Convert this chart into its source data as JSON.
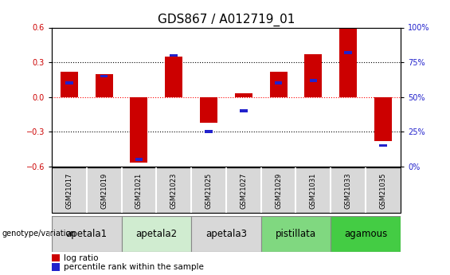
{
  "title": "GDS867 / A012719_01",
  "samples": [
    "GSM21017",
    "GSM21019",
    "GSM21021",
    "GSM21023",
    "GSM21025",
    "GSM21027",
    "GSM21029",
    "GSM21031",
    "GSM21033",
    "GSM21035"
  ],
  "log_ratio": [
    0.22,
    0.2,
    -0.57,
    0.35,
    -0.22,
    0.03,
    0.22,
    0.37,
    0.6,
    -0.38
  ],
  "percentile": [
    60,
    65,
    5,
    80,
    25,
    40,
    60,
    62,
    82,
    15
  ],
  "ylim": [
    -0.6,
    0.6
  ],
  "right_ylim": [
    0,
    100
  ],
  "right_yticks": [
    0,
    25,
    50,
    75,
    100
  ],
  "right_yticklabels": [
    "0%",
    "25%",
    "50%",
    "75%",
    "100%"
  ],
  "left_yticks": [
    -0.6,
    -0.3,
    0.0,
    0.3,
    0.6
  ],
  "bar_color": "#cc0000",
  "percentile_color": "#2222cc",
  "bar_width": 0.5,
  "groups": [
    {
      "label": "apetala1",
      "start": 0,
      "end": 2,
      "color": "#d8d8d8"
    },
    {
      "label": "apetala2",
      "start": 2,
      "end": 4,
      "color": "#d0ecd0"
    },
    {
      "label": "apetala3",
      "start": 4,
      "end": 6,
      "color": "#d8d8d8"
    },
    {
      "label": "pistillata",
      "start": 6,
      "end": 8,
      "color": "#80d880"
    },
    {
      "label": "agamous",
      "start": 8,
      "end": 10,
      "color": "#44cc44"
    }
  ],
  "left_label_color": "#cc0000",
  "right_label_color": "#2222cc",
  "title_fontsize": 11,
  "tick_fontsize": 7,
  "group_fontsize": 8.5,
  "legend_fontsize": 7.5,
  "sample_fontsize": 6
}
